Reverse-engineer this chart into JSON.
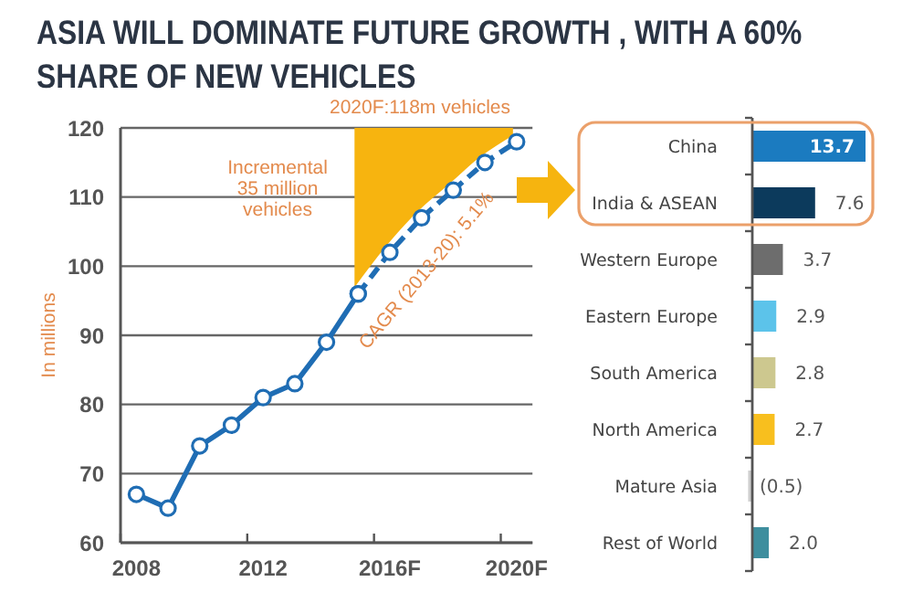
{
  "chart_data": [
    {
      "type": "line",
      "title": "ASIA WILL DOMINATE FUTURE GROWTH , WITH A 60% SHARE OF NEW VEHICLES",
      "ylabel": "In millions",
      "categories": [
        "2008",
        null,
        null,
        null,
        "2012",
        null,
        null,
        null,
        "2016F",
        null,
        null,
        null,
        "2020F"
      ],
      "series": [
        {
          "color": "#1f6db4",
          "values": [
            67,
            65,
            74,
            77,
            81,
            83,
            89,
            96,
            null,
            null,
            null,
            null,
            null
          ]
        },
        {
          "color": "#1f6db4",
          "line_style": "dashed",
          "values": [
            null,
            null,
            null,
            null,
            null,
            null,
            null,
            96,
            102,
            107,
            111,
            115,
            118
          ]
        }
      ],
      "ylim": [
        60,
        120
      ],
      "yticks": [
        60,
        70,
        80,
        90,
        100,
        110,
        120
      ],
      "grid": "y",
      "marker": "circle",
      "line_style": "solid",
      "annotations": [
        "2020F:118m vehicles",
        "Incremental 35 million vehicles",
        "CAGR (2013-20): 5.1%"
      ]
    },
    {
      "type": "bar",
      "orientation": "horizontal",
      "categories": [
        "China",
        "India & ASEAN",
        "Western Europe",
        "Eastern Europe",
        "South America",
        "North America",
        "Mature Asia",
        "Rest of World"
      ],
      "values": [
        13.7,
        7.6,
        3.7,
        2.9,
        2.8,
        2.7,
        -0.5,
        2.0
      ],
      "colors": [
        "#1b7bc0",
        "#0c3a5c",
        "#6d6d6d",
        "#5cc3ea",
        "#cdc88f",
        "#f8bf1e",
        "#cfcfcf",
        "#3e8e9e"
      ],
      "value_labels": [
        "13.7",
        "7.6",
        "3.7",
        "2.9",
        "2.8",
        "2.7",
        "(0.5)",
        "2.0"
      ]
    }
  ]
}
